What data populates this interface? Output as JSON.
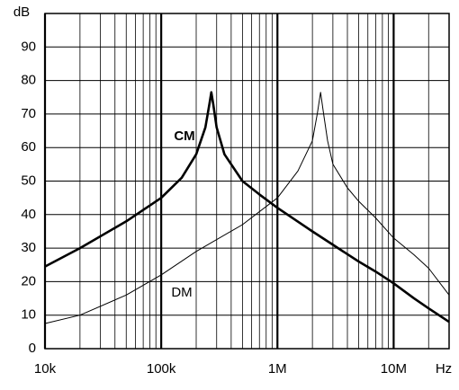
{
  "chart_data": {
    "type": "line",
    "y_unit": "dB",
    "x_unit": "Hz",
    "log_x": true,
    "grid": true,
    "color": "#000000",
    "xlim": [
      10000,
      30000000
    ],
    "ylim": [
      0,
      100
    ],
    "xticks": [
      {
        "value": 10000,
        "label": "10k"
      },
      {
        "value": 100000,
        "label": "100k"
      },
      {
        "value": 1000000,
        "label": "1M"
      },
      {
        "value": 10000000,
        "label": "10M"
      }
    ],
    "xminorticks": [
      20000,
      30000,
      40000,
      50000,
      60000,
      70000,
      80000,
      90000,
      200000,
      300000,
      400000,
      500000,
      600000,
      700000,
      800000,
      900000,
      2000000,
      3000000,
      4000000,
      5000000,
      6000000,
      7000000,
      8000000,
      9000000,
      20000000
    ],
    "yticks": [
      0,
      10,
      20,
      30,
      40,
      50,
      60,
      70,
      80,
      90
    ],
    "series": [
      {
        "name": "CM",
        "color": "#000000",
        "x": [
          10000,
          20000,
          50000,
          100000,
          150000,
          200000,
          240000,
          260000,
          270000,
          280000,
          300000,
          350000,
          500000,
          700000,
          1000000,
          2000000,
          3000000,
          5000000,
          7000000,
          10000000,
          15000000,
          20000000,
          30000000
        ],
        "values": [
          24.5,
          30,
          38,
          45,
          51,
          58,
          66,
          73,
          76.5,
          73,
          66,
          58,
          50,
          46,
          42,
          35,
          31,
          26,
          23,
          19.5,
          15,
          12,
          8
        ]
      },
      {
        "name": "DM",
        "color": "#000000",
        "x": [
          10000,
          20000,
          50000,
          100000,
          200000,
          500000,
          1000000,
          1500000,
          2000000,
          2200000,
          2350000,
          2500000,
          2700000,
          3000000,
          4000000,
          5000000,
          7000000,
          10000000,
          15000000,
          20000000,
          30000000
        ],
        "values": [
          7.5,
          10,
          16,
          22,
          29,
          37,
          45,
          53,
          62,
          70,
          76.5,
          70,
          62,
          55,
          48,
          44,
          39,
          33,
          28,
          24,
          16
        ]
      }
    ]
  }
}
